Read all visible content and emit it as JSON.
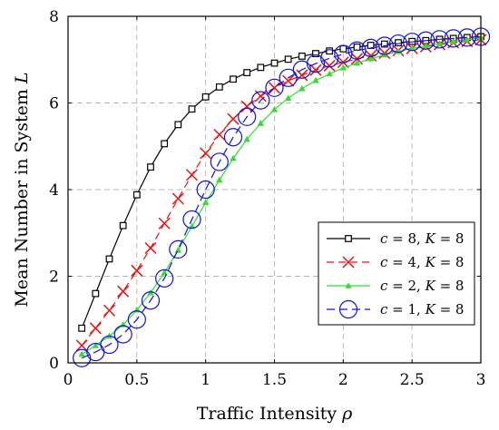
{
  "chart_data": {
    "type": "line",
    "title": "",
    "xlabel_text": "Traffic Intensity ",
    "xlabel_symbol": "ρ",
    "ylabel_text": "Mean Number in System ",
    "ylabel_symbol": "L",
    "xlim": [
      0,
      3
    ],
    "ylim": [
      0,
      8
    ],
    "xticks": [
      0,
      0.5,
      1,
      1.5,
      2,
      2.5,
      3
    ],
    "xtick_labels": [
      "0",
      "0.5",
      "1",
      "1.5",
      "2",
      "2.5",
      "3"
    ],
    "yticks": [
      0,
      2,
      4,
      6,
      8
    ],
    "ytick_labels": [
      "0",
      "2",
      "4",
      "6",
      "8"
    ],
    "grid": true,
    "legend_position": "center-right",
    "x": [
      0.1,
      0.2,
      0.3,
      0.4,
      0.5,
      0.6,
      0.7,
      0.8,
      0.9,
      1.0,
      1.1,
      1.2,
      1.3,
      1.4,
      1.5,
      1.6,
      1.7,
      1.8,
      1.9,
      2.0,
      2.1,
      2.2,
      2.3,
      2.4,
      2.5,
      2.6,
      2.7,
      2.8,
      2.9,
      3.0
    ],
    "series": [
      {
        "name": "c = 8, K = 8",
        "legend_parts": [
          "c",
          " = 8, ",
          "K",
          " = 8"
        ],
        "color": "#000000",
        "marker": "square",
        "dash": "",
        "values": [
          0.8,
          1.6,
          2.4,
          3.17,
          3.88,
          4.52,
          5.06,
          5.5,
          5.86,
          6.14,
          6.37,
          6.55,
          6.7,
          6.82,
          6.92,
          7.01,
          7.08,
          7.14,
          7.2,
          7.25,
          7.29,
          7.33,
          7.36,
          7.39,
          7.42,
          7.44,
          7.47,
          7.49,
          7.51,
          7.53
        ]
      },
      {
        "name": "c = 4, K = 8",
        "legend_parts": [
          "c",
          " = 4, ",
          "K",
          " = 8"
        ],
        "color": "#ee1111",
        "marker": "x",
        "dash": "8,5",
        "values": [
          0.4,
          0.8,
          1.21,
          1.65,
          2.13,
          2.65,
          3.22,
          3.79,
          4.34,
          4.84,
          5.27,
          5.63,
          5.92,
          6.16,
          6.35,
          6.51,
          6.64,
          6.76,
          6.86,
          6.94,
          7.02,
          7.09,
          7.15,
          7.21,
          7.26,
          7.3,
          7.35,
          7.39,
          7.42,
          7.46
        ]
      },
      {
        "name": "c = 2, K = 8",
        "legend_parts": [
          "c",
          " = 2, ",
          "K",
          " = 8"
        ],
        "color": "#33dd33",
        "marker": "triangle",
        "dash": "",
        "values": [
          0.2,
          0.4,
          0.62,
          0.88,
          1.22,
          1.62,
          2.08,
          2.6,
          3.15,
          3.7,
          4.22,
          4.72,
          5.16,
          5.53,
          5.85,
          6.11,
          6.33,
          6.52,
          6.67,
          6.81,
          6.92,
          7.02,
          7.11,
          7.19,
          7.26,
          7.32,
          7.37,
          7.42,
          7.46,
          7.5
        ]
      },
      {
        "name": "c = 1, K = 8",
        "legend_parts": [
          "c",
          " = 1, ",
          "K",
          " = 8"
        ],
        "color": "#1111dd",
        "marker": "circle",
        "dash": "9,5",
        "values": [
          0.11,
          0.25,
          0.42,
          0.66,
          1.0,
          1.44,
          1.95,
          2.62,
          3.31,
          4.0,
          4.64,
          5.21,
          5.68,
          6.06,
          6.35,
          6.58,
          6.77,
          6.91,
          7.03,
          7.13,
          7.21,
          7.27,
          7.32,
          7.37,
          7.41,
          7.44,
          7.47,
          7.49,
          7.51,
          7.53
        ]
      }
    ]
  }
}
